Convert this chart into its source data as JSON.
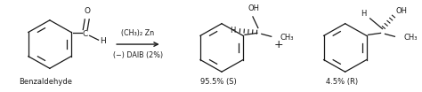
{
  "background_color": "#ffffff",
  "figsize": [
    4.74,
    1.04
  ],
  "dpi": 100,
  "reagent_line1": "(CH₃)₂ Zn",
  "reagent_line2": "(−) DAIB (2%)",
  "product1_label": "95.5% (S)",
  "product2_label": "4.5% (R)",
  "reactant_label": "Benzaldehyde",
  "plus_sign": "+",
  "text_color": "#1a1a1a",
  "line_color": "#1a1a1a",
  "font_size_label": 6.0,
  "font_size_reagent": 5.8,
  "font_size_atom": 6.5,
  "font_size_plus": 9
}
